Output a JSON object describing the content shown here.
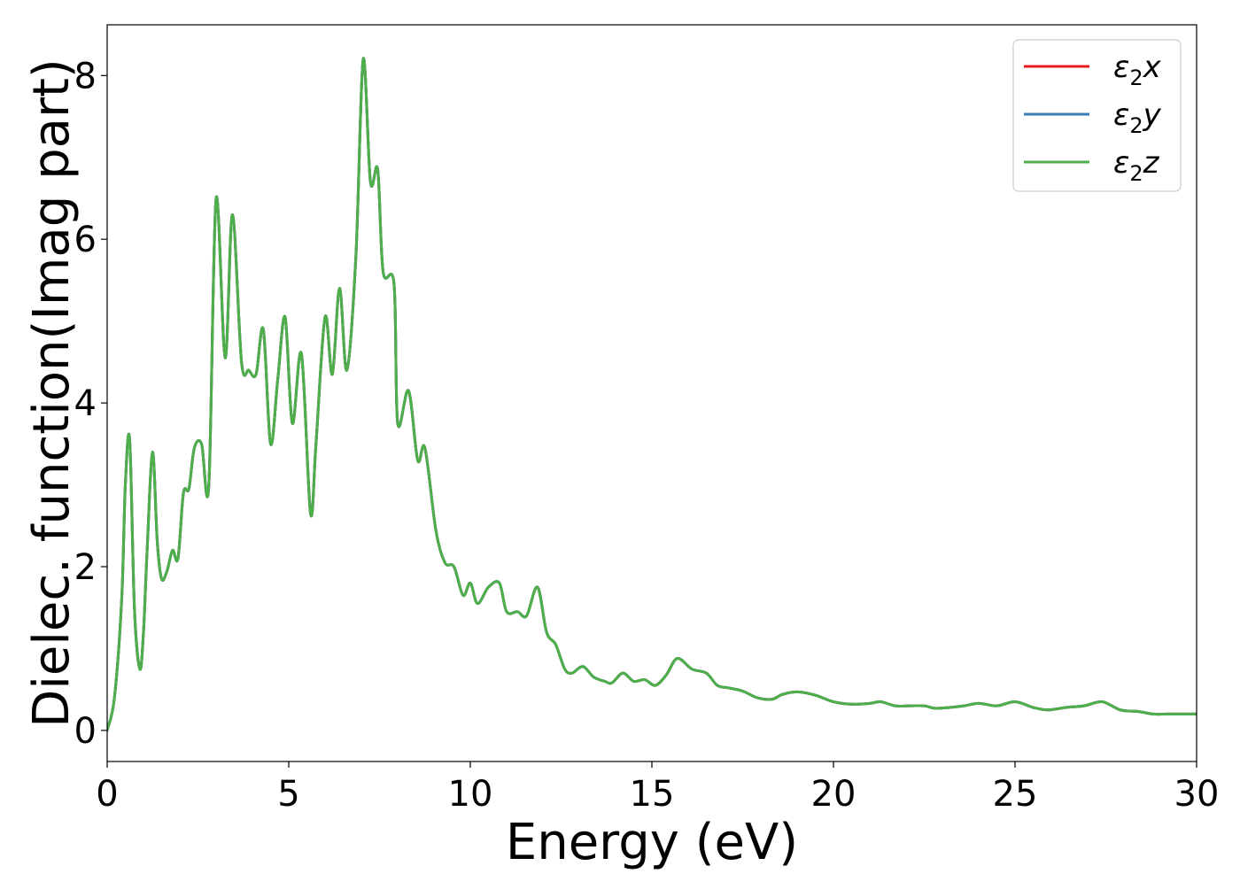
{
  "chart_data": {
    "type": "line",
    "title": "",
    "xlabel": "Energy (eV)",
    "ylabel": "Dielec. function(Imag part)",
    "xlim": [
      0,
      30
    ],
    "ylim": [
      -0.38,
      8.62
    ],
    "xticks": [
      0,
      5,
      10,
      15,
      20,
      25,
      30
    ],
    "xtick_labels": [
      "0",
      "5",
      "10",
      "15",
      "20",
      "25",
      "30"
    ],
    "yticks": [
      0,
      2,
      4,
      6,
      8
    ],
    "ytick_labels": [
      "0",
      "2",
      "4",
      "6",
      "8"
    ],
    "grid": false,
    "legend_position": "top-right",
    "series": [
      {
        "name": "ε2x",
        "legend": {
          "base": "ε",
          "sub": "2",
          "tail": "x"
        },
        "color": "#e41a1c",
        "x": [
          0,
          0.2,
          0.4,
          0.5,
          0.62,
          0.75,
          0.9,
          1.0,
          1.1,
          1.25,
          1.38,
          1.5,
          1.65,
          1.8,
          1.95,
          2.1,
          2.25,
          2.4,
          2.6,
          2.8,
          3.0,
          3.25,
          3.45,
          3.7,
          3.9,
          4.1,
          4.3,
          4.5,
          4.7,
          4.9,
          5.1,
          5.35,
          5.6,
          5.75,
          6.0,
          6.2,
          6.4,
          6.6,
          6.85,
          7.05,
          7.25,
          7.45,
          7.6,
          7.9,
          8.0,
          8.3,
          8.55,
          8.75,
          9.05,
          9.3,
          9.55,
          9.8,
          10.0,
          10.2,
          10.5,
          10.8,
          11.0,
          11.3,
          11.55,
          11.85,
          12.1,
          12.35,
          12.6,
          12.8,
          13.1,
          13.4,
          13.7,
          13.9,
          14.2,
          14.5,
          14.8,
          15.1,
          15.4,
          15.7,
          16.1,
          16.5,
          16.8,
          17.1,
          17.5,
          17.9,
          18.3,
          18.6,
          19.0,
          19.5,
          20.0,
          20.5,
          21.0,
          21.3,
          21.7,
          22.1,
          22.5,
          22.8,
          23.2,
          23.6,
          24.0,
          24.5,
          25.0,
          25.5,
          25.9,
          26.4,
          26.9,
          27.4,
          27.9,
          28.4,
          28.8,
          29.2,
          29.6,
          30.0
        ],
        "y": [
          0.0,
          0.4,
          1.6,
          3.0,
          3.55,
          1.5,
          0.75,
          1.2,
          2.2,
          3.4,
          2.3,
          1.85,
          1.95,
          2.2,
          2.1,
          2.9,
          2.95,
          3.45,
          3.5,
          3.0,
          6.5,
          4.55,
          6.3,
          4.5,
          4.4,
          4.35,
          4.9,
          3.5,
          4.3,
          5.05,
          3.75,
          4.6,
          2.65,
          3.5,
          5.05,
          4.35,
          5.4,
          4.4,
          5.8,
          8.2,
          6.7,
          6.85,
          5.6,
          5.45,
          3.75,
          4.15,
          3.3,
          3.45,
          2.45,
          2.05,
          2.0,
          1.65,
          1.8,
          1.55,
          1.75,
          1.8,
          1.45,
          1.45,
          1.4,
          1.75,
          1.2,
          1.05,
          0.75,
          0.7,
          0.78,
          0.65,
          0.6,
          0.58,
          0.7,
          0.6,
          0.62,
          0.55,
          0.68,
          0.88,
          0.75,
          0.7,
          0.55,
          0.52,
          0.48,
          0.4,
          0.38,
          0.44,
          0.47,
          0.43,
          0.35,
          0.32,
          0.33,
          0.35,
          0.3,
          0.3,
          0.3,
          0.27,
          0.28,
          0.3,
          0.33,
          0.3,
          0.35,
          0.28,
          0.25,
          0.28,
          0.3,
          0.35,
          0.25,
          0.23,
          0.2,
          0.2,
          0.2,
          0.2
        ]
      },
      {
        "name": "ε2y",
        "legend": {
          "base": "ε",
          "sub": "2",
          "tail": "y"
        },
        "color": "#377eb8",
        "x": [
          0,
          0.2,
          0.4,
          0.5,
          0.62,
          0.75,
          0.9,
          1.0,
          1.1,
          1.25,
          1.38,
          1.5,
          1.65,
          1.8,
          1.95,
          2.1,
          2.25,
          2.4,
          2.6,
          2.8,
          3.0,
          3.25,
          3.45,
          3.7,
          3.9,
          4.1,
          4.3,
          4.5,
          4.7,
          4.9,
          5.1,
          5.35,
          5.6,
          5.75,
          6.0,
          6.2,
          6.4,
          6.6,
          6.85,
          7.05,
          7.25,
          7.45,
          7.6,
          7.9,
          8.0,
          8.3,
          8.55,
          8.75,
          9.05,
          9.3,
          9.55,
          9.8,
          10.0,
          10.2,
          10.5,
          10.8,
          11.0,
          11.3,
          11.55,
          11.85,
          12.1,
          12.35,
          12.6,
          12.8,
          13.1,
          13.4,
          13.7,
          13.9,
          14.2,
          14.5,
          14.8,
          15.1,
          15.4,
          15.7,
          16.1,
          16.5,
          16.8,
          17.1,
          17.5,
          17.9,
          18.3,
          18.6,
          19.0,
          19.5,
          20.0,
          20.5,
          21.0,
          21.3,
          21.7,
          22.1,
          22.5,
          22.8,
          23.2,
          23.6,
          24.0,
          24.5,
          25.0,
          25.5,
          25.9,
          26.4,
          26.9,
          27.4,
          27.9,
          28.4,
          28.8,
          29.2,
          29.6,
          30.0
        ],
        "y": [
          0.0,
          0.4,
          1.6,
          3.0,
          3.55,
          1.5,
          0.75,
          1.2,
          2.2,
          3.4,
          2.3,
          1.85,
          1.95,
          2.2,
          2.1,
          2.9,
          2.95,
          3.45,
          3.5,
          3.0,
          6.5,
          4.55,
          6.3,
          4.5,
          4.4,
          4.35,
          4.9,
          3.5,
          4.3,
          5.05,
          3.75,
          4.6,
          2.65,
          3.5,
          5.05,
          4.35,
          5.4,
          4.4,
          5.8,
          8.2,
          6.7,
          6.85,
          5.6,
          5.45,
          3.75,
          4.15,
          3.3,
          3.45,
          2.45,
          2.05,
          2.0,
          1.65,
          1.8,
          1.55,
          1.75,
          1.8,
          1.45,
          1.45,
          1.4,
          1.75,
          1.2,
          1.05,
          0.75,
          0.7,
          0.78,
          0.65,
          0.6,
          0.58,
          0.7,
          0.6,
          0.62,
          0.55,
          0.68,
          0.88,
          0.75,
          0.7,
          0.55,
          0.52,
          0.48,
          0.4,
          0.38,
          0.44,
          0.47,
          0.43,
          0.35,
          0.32,
          0.33,
          0.35,
          0.3,
          0.3,
          0.3,
          0.27,
          0.28,
          0.3,
          0.33,
          0.3,
          0.35,
          0.28,
          0.25,
          0.28,
          0.3,
          0.35,
          0.25,
          0.23,
          0.2,
          0.2,
          0.2,
          0.2
        ]
      },
      {
        "name": "ε2z",
        "legend": {
          "base": "ε",
          "sub": "2",
          "tail": "z"
        },
        "color": "#4daf4a",
        "x": [
          0,
          0.2,
          0.4,
          0.5,
          0.62,
          0.75,
          0.9,
          1.0,
          1.1,
          1.25,
          1.38,
          1.5,
          1.65,
          1.8,
          1.95,
          2.1,
          2.25,
          2.4,
          2.6,
          2.8,
          3.0,
          3.25,
          3.45,
          3.7,
          3.9,
          4.1,
          4.3,
          4.5,
          4.7,
          4.9,
          5.1,
          5.35,
          5.6,
          5.75,
          6.0,
          6.2,
          6.4,
          6.6,
          6.85,
          7.05,
          7.25,
          7.45,
          7.6,
          7.9,
          8.0,
          8.3,
          8.55,
          8.75,
          9.05,
          9.3,
          9.55,
          9.8,
          10.0,
          10.2,
          10.5,
          10.8,
          11.0,
          11.3,
          11.55,
          11.85,
          12.1,
          12.35,
          12.6,
          12.8,
          13.1,
          13.4,
          13.7,
          13.9,
          14.2,
          14.5,
          14.8,
          15.1,
          15.4,
          15.7,
          16.1,
          16.5,
          16.8,
          17.1,
          17.5,
          17.9,
          18.3,
          18.6,
          19.0,
          19.5,
          20.0,
          20.5,
          21.0,
          21.3,
          21.7,
          22.1,
          22.5,
          22.8,
          23.2,
          23.6,
          24.0,
          24.5,
          25.0,
          25.5,
          25.9,
          26.4,
          26.9,
          27.4,
          27.9,
          28.4,
          28.8,
          29.2,
          29.6,
          30.0
        ],
        "y": [
          0.0,
          0.4,
          1.6,
          3.0,
          3.55,
          1.5,
          0.75,
          1.2,
          2.2,
          3.4,
          2.3,
          1.85,
          1.95,
          2.2,
          2.1,
          2.9,
          2.95,
          3.45,
          3.5,
          3.0,
          6.5,
          4.55,
          6.3,
          4.5,
          4.4,
          4.35,
          4.9,
          3.5,
          4.3,
          5.05,
          3.75,
          4.6,
          2.65,
          3.5,
          5.05,
          4.35,
          5.4,
          4.4,
          5.8,
          8.2,
          6.7,
          6.85,
          5.6,
          5.45,
          3.75,
          4.15,
          3.3,
          3.45,
          2.45,
          2.05,
          2.0,
          1.65,
          1.8,
          1.55,
          1.75,
          1.8,
          1.45,
          1.45,
          1.4,
          1.75,
          1.2,
          1.05,
          0.75,
          0.7,
          0.78,
          0.65,
          0.6,
          0.58,
          0.7,
          0.6,
          0.62,
          0.55,
          0.68,
          0.88,
          0.75,
          0.7,
          0.55,
          0.52,
          0.48,
          0.4,
          0.38,
          0.44,
          0.47,
          0.43,
          0.35,
          0.32,
          0.33,
          0.35,
          0.3,
          0.3,
          0.3,
          0.27,
          0.28,
          0.3,
          0.33,
          0.3,
          0.35,
          0.28,
          0.25,
          0.28,
          0.3,
          0.35,
          0.25,
          0.23,
          0.2,
          0.2,
          0.2,
          0.2
        ]
      }
    ]
  }
}
